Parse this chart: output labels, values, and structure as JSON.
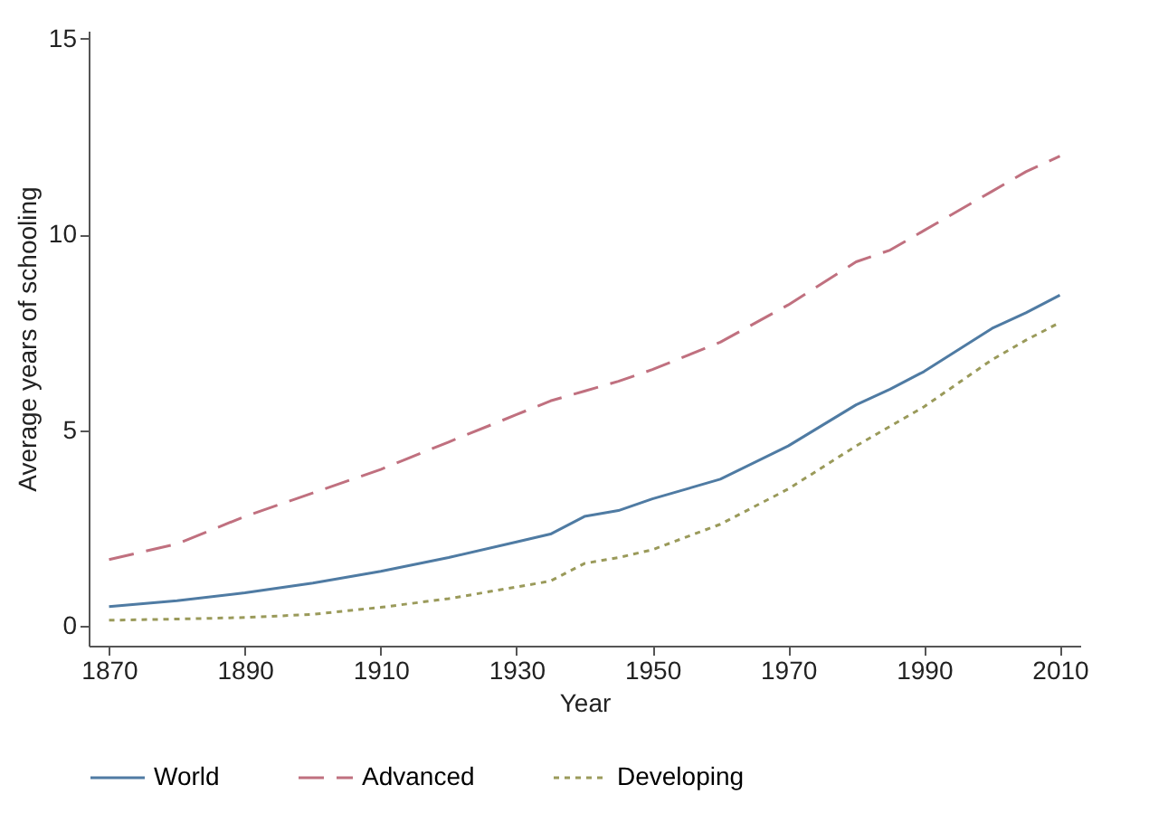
{
  "chart_data": {
    "type": "line",
    "xlabel": "Year",
    "ylabel": "Average years of schooling",
    "x": [
      1870,
      1880,
      1890,
      1900,
      1910,
      1920,
      1930,
      1935,
      1940,
      1945,
      1950,
      1960,
      1970,
      1980,
      1985,
      1990,
      2000,
      2005,
      2010
    ],
    "series": [
      {
        "name": "World",
        "color": "#4f7ba3",
        "line_style": "solid",
        "values": [
          0.5,
          0.65,
          0.85,
          1.1,
          1.4,
          1.75,
          2.15,
          2.35,
          2.8,
          2.95,
          3.25,
          3.75,
          4.6,
          5.65,
          6.05,
          6.5,
          7.6,
          8.0,
          8.45
        ]
      },
      {
        "name": "Advanced",
        "color": "#c0707f",
        "line_style": "dashed",
        "values": [
          1.7,
          2.1,
          2.8,
          3.4,
          4.0,
          4.7,
          5.4,
          5.75,
          6.0,
          6.25,
          6.55,
          7.25,
          8.2,
          9.3,
          9.6,
          10.1,
          11.1,
          11.6,
          12.0
        ]
      },
      {
        "name": "Developing",
        "color": "#9a9a5a",
        "line_style": "dotted",
        "values": [
          0.15,
          0.18,
          0.22,
          0.3,
          0.48,
          0.7,
          1.0,
          1.15,
          1.6,
          1.75,
          1.95,
          2.6,
          3.5,
          4.6,
          5.1,
          5.6,
          6.8,
          7.3,
          7.75
        ]
      }
    ],
    "xlim": [
      1867,
      2013
    ],
    "xticks": [
      1870,
      1890,
      1910,
      1930,
      1950,
      1970,
      1990,
      2010
    ],
    "ylim": [
      -0.5,
      15.2
    ],
    "yticks": [
      0,
      5,
      10,
      15
    ],
    "grid": false,
    "legend": "bottom"
  }
}
